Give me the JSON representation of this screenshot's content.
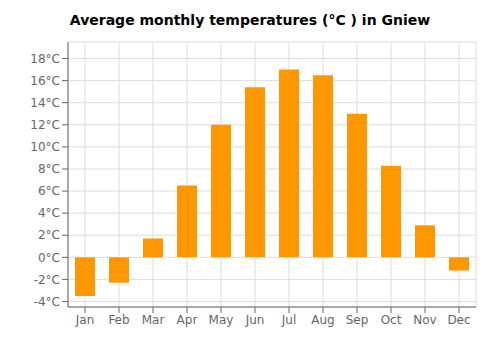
{
  "chart_data": {
    "type": "bar",
    "title": "Average monthly temperatures (°C ) in Gniew",
    "categories": [
      "Jan",
      "Feb",
      "Mar",
      "Apr",
      "May",
      "Jun",
      "Jul",
      "Aug",
      "Sep",
      "Oct",
      "Nov",
      "Dec"
    ],
    "values": [
      -3.5,
      -2.3,
      1.7,
      6.5,
      12.0,
      15.4,
      17.0,
      16.5,
      13.0,
      8.3,
      2.9,
      -1.2
    ],
    "color": "#FF9800",
    "ylim": [
      -4.5,
      19.5
    ],
    "yticks": [
      {
        "value": -4,
        "label": "-4°C"
      },
      {
        "value": -2,
        "label": "-2°C"
      },
      {
        "value": 0,
        "label": "0°C"
      },
      {
        "value": 2,
        "label": "2°C"
      },
      {
        "value": 4,
        "label": "4°C"
      },
      {
        "value": 6,
        "label": "6°C"
      },
      {
        "value": 8,
        "label": "8°C"
      },
      {
        "value": 10,
        "label": "10°C"
      },
      {
        "value": 12,
        "label": "12°C"
      },
      {
        "value": 14,
        "label": "14°C"
      },
      {
        "value": 16,
        "label": "16°C"
      },
      {
        "value": 18,
        "label": "18°C"
      }
    ],
    "grid": true
  }
}
